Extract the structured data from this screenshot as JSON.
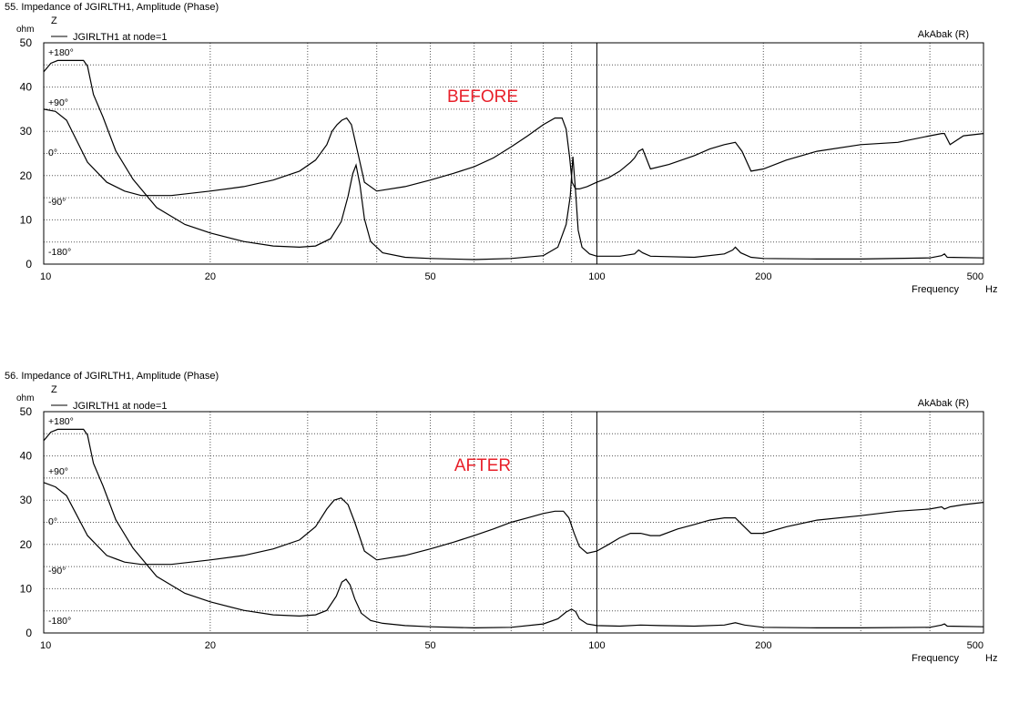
{
  "chart_data": [
    {
      "type": "line",
      "title": "55. Impedance of JGIRLTH1, Amplitude (Phase)",
      "y_symbol": "Z",
      "y_unit": "ohm",
      "legend": "JGIRLTH1 at node=1",
      "legend_placement": "top-left",
      "brand": "AkAbak (R)",
      "annotation": "BEFORE",
      "annotation_color": "#e8202a",
      "xlabel": "Frequency",
      "xunit": "Hz",
      "x_scale": "log",
      "xlim": [
        10,
        500
      ],
      "ylim": [
        0,
        50
      ],
      "grid": true,
      "x_ticks": [
        "10",
        "20",
        "50",
        "100",
        "200",
        "500"
      ],
      "y_ticks": [
        "0",
        "10",
        "20",
        "30",
        "40",
        "50"
      ],
      "phase_ticks": [
        "+180°",
        "+90°",
        "0°",
        "-90°",
        "-180°"
      ],
      "series": [
        {
          "role": "impedance",
          "x": [
            10,
            10.5,
            11,
            12,
            13,
            14,
            15,
            17,
            20,
            23,
            26,
            29,
            31,
            32.5,
            33.2,
            33.9,
            34.6,
            35.3,
            36,
            37,
            38,
            40,
            45,
            50,
            55,
            60,
            65,
            70,
            75,
            80,
            84,
            86.5,
            88,
            89.3,
            90.2,
            91.5,
            93,
            96,
            100,
            105,
            110,
            115,
            117,
            119,
            121,
            125,
            135,
            150,
            160,
            170,
            178,
            183,
            190,
            200,
            220,
            250,
            300,
            350,
            400,
            420,
            425,
            435,
            460,
            500
          ],
          "y": [
            35,
            34.5,
            32.5,
            23,
            18.5,
            16.5,
            15.5,
            15.5,
            16.5,
            17.5,
            19,
            21,
            23.5,
            27,
            30,
            31.5,
            32.5,
            33,
            31.5,
            25,
            18.5,
            16.5,
            17.5,
            19,
            20.5,
            22,
            24,
            26.5,
            29,
            31.5,
            33,
            33,
            30.5,
            24,
            18.5,
            17,
            17,
            17.5,
            18.5,
            19.5,
            21,
            23,
            24,
            25.5,
            26,
            21.5,
            22.5,
            24.5,
            26,
            27,
            27.5,
            25.5,
            21,
            21.5,
            23.5,
            25.5,
            27,
            27.5,
            29,
            29.5,
            29.5,
            27,
            29,
            29.5
          ]
        },
        {
          "role": "phase",
          "x": [
            10,
            10.3,
            10.6,
            11,
            11.5,
            11.8,
            12,
            12.3,
            12.8,
            13.5,
            14.5,
            16,
            18,
            20,
            23,
            26,
            29,
            31,
            33,
            34.5,
            35.5,
            36.2,
            36.7,
            37.3,
            38,
            39,
            41,
            45,
            50,
            60,
            70,
            80,
            85,
            88,
            89.5,
            90.5,
            91.5,
            92.5,
            94,
            97,
            100,
            110,
            117,
            119,
            121,
            125,
            150,
            170,
            176,
            178,
            182,
            190,
            200,
            250,
            300,
            400,
            420,
            425,
            430,
            500
          ],
          "y": [
            160,
            175,
            180,
            180,
            180,
            180,
            170,
            120,
            80,
            20,
            -30,
            -80,
            -110,
            -125,
            -140,
            -148,
            -150,
            -148,
            -135,
            -105,
            -60,
            -20,
            -5,
            -40,
            -100,
            -140,
            -160,
            -168,
            -170,
            -172,
            -170,
            -165,
            -150,
            -110,
            -60,
            10,
            -50,
            -120,
            -150,
            -162,
            -166,
            -166,
            -162,
            -155,
            -160,
            -166,
            -168,
            -162,
            -155,
            -150,
            -160,
            -168,
            -170,
            -171,
            -171,
            -169,
            -165,
            -162,
            -168,
            -169
          ]
        }
      ]
    },
    {
      "type": "line",
      "title": "56. Impedance of JGIRLTH1, Amplitude (Phase)",
      "y_symbol": "Z",
      "y_unit": "ohm",
      "legend": "JGIRLTH1 at node=1",
      "legend_placement": "top-left",
      "brand": "AkAbak (R)",
      "annotation": "AFTER",
      "annotation_color": "#e8202a",
      "xlabel": "Frequency",
      "xunit": "Hz",
      "x_scale": "log",
      "xlim": [
        10,
        500
      ],
      "ylim": [
        0,
        50
      ],
      "grid": true,
      "x_ticks": [
        "10",
        "20",
        "50",
        "100",
        "200",
        "500"
      ],
      "y_ticks": [
        "0",
        "10",
        "20",
        "30",
        "40",
        "50"
      ],
      "phase_ticks": [
        "+180°",
        "+90°",
        "0°",
        "-90°",
        "-180°"
      ],
      "series": [
        {
          "role": "impedance",
          "x": [
            10,
            10.5,
            11,
            12,
            13,
            14,
            15,
            17,
            20,
            23,
            26,
            29,
            31,
            32.5,
            33.5,
            34.5,
            35.5,
            36.5,
            38,
            40,
            45,
            50,
            55,
            60,
            65,
            70,
            75,
            80,
            84,
            87,
            89,
            91,
            93,
            96,
            100,
            105,
            110,
            115,
            120,
            125,
            130,
            140,
            150,
            160,
            170,
            178,
            183,
            190,
            200,
            220,
            250,
            300,
            350,
            400,
            420,
            425,
            435,
            460,
            500
          ],
          "y": [
            34,
            33,
            31,
            22,
            17.5,
            16,
            15.5,
            15.5,
            16.5,
            17.5,
            19,
            21,
            24,
            28,
            30,
            30.5,
            29,
            25,
            18.5,
            16.5,
            17.5,
            19,
            20.5,
            22,
            23.5,
            25,
            26,
            27,
            27.5,
            27.5,
            26,
            22.5,
            19.5,
            18,
            18.5,
            20,
            21.5,
            22.5,
            22.5,
            22,
            22,
            23.5,
            24.5,
            25.5,
            26,
            26,
            24.5,
            22.5,
            22.5,
            24,
            25.5,
            26.5,
            27.5,
            28,
            28.5,
            28,
            28.5,
            29,
            29.5
          ]
        },
        {
          "role": "phase",
          "x": [
            10,
            10.3,
            10.6,
            11,
            11.5,
            11.8,
            12,
            12.3,
            12.8,
            13.5,
            14.5,
            16,
            18,
            20,
            23,
            26,
            29,
            31,
            32.5,
            33.8,
            34.6,
            35.2,
            35.8,
            36.5,
            37.5,
            39,
            41,
            45,
            50,
            60,
            70,
            80,
            85,
            88,
            90,
            91.5,
            93,
            96,
            100,
            110,
            120,
            130,
            150,
            170,
            178,
            185,
            200,
            250,
            300,
            400,
            420,
            425,
            430,
            500
          ],
          "y": [
            160,
            175,
            180,
            180,
            180,
            180,
            170,
            120,
            80,
            20,
            -30,
            -80,
            -110,
            -125,
            -140,
            -148,
            -150,
            -148,
            -140,
            -115,
            -90,
            -85,
            -95,
            -120,
            -145,
            -158,
            -163,
            -167,
            -169,
            -171,
            -170,
            -164,
            -155,
            -143,
            -138,
            -142,
            -155,
            -164,
            -167,
            -168,
            -166,
            -167,
            -168,
            -166,
            -162,
            -166,
            -170,
            -171,
            -171,
            -170,
            -166,
            -164,
            -168,
            -169
          ]
        }
      ]
    }
  ]
}
